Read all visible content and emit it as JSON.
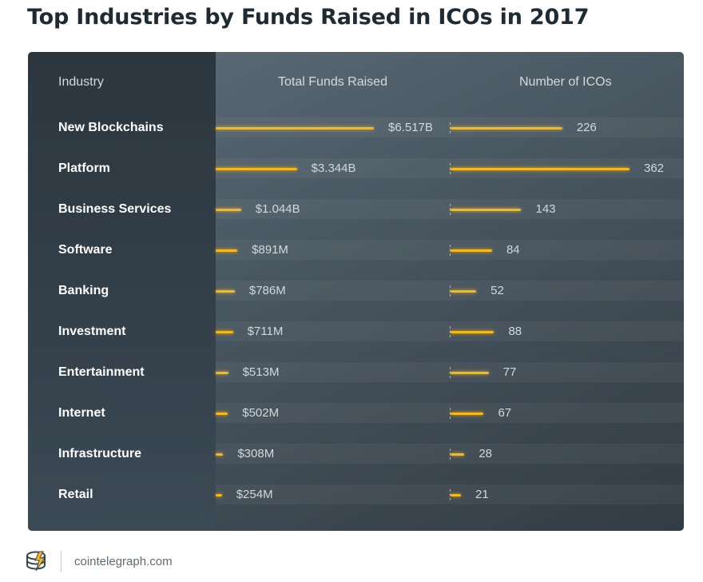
{
  "title": "Top Industries by Funds Raised in ICOs in 2017",
  "table": {
    "col_industry": "Industry",
    "col_funds": "Total Funds Raised",
    "col_icos": "Number of ICOs"
  },
  "footer": {
    "site": "cointelegraph.com",
    "logo_icon": "cointelegraph-logo-icon"
  },
  "colors": {
    "bar": "#f7b917",
    "panel": "#3f4c56",
    "label": "#ffffff"
  },
  "chart_data": {
    "type": "bar",
    "orientation": "horizontal",
    "title": "Top Industries by Funds Raised in ICOs in 2017",
    "categories": [
      "New Blockchains",
      "Platform",
      "Business Services",
      "Software",
      "Banking",
      "Investment",
      "Entertainment",
      "Internet",
      "Infrastructure",
      "Retail"
    ],
    "series": [
      {
        "name": "Total Funds Raised",
        "values": [
          6517,
          3344,
          1044,
          891,
          786,
          711,
          513,
          502,
          308,
          254
        ],
        "unit": "million USD",
        "labels": [
          "$6.517B",
          "$3.344B",
          "$1.044B",
          "$891M",
          "$786M",
          "$711M",
          "$513M",
          "$502M",
          "$308M",
          "$254M"
        ]
      },
      {
        "name": "Number of ICOs",
        "values": [
          226,
          362,
          143,
          84,
          52,
          88,
          77,
          67,
          28,
          21
        ],
        "labels": [
          "226",
          "362",
          "143",
          "84",
          "52",
          "88",
          "77",
          "67",
          "28",
          "21"
        ]
      }
    ],
    "grid": false,
    "legend": "none"
  }
}
